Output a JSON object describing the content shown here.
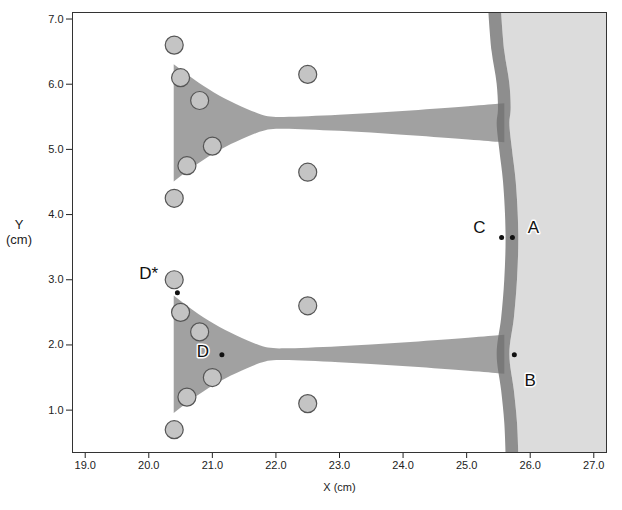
{
  "chart_data": {
    "type": "field",
    "x_label": "X (cm)",
    "y_label": "Y (cm)",
    "xlim": [
      18.8,
      27.2
    ],
    "ylim": [
      0.35,
      7.1
    ],
    "xticks": [
      {
        "value": 19,
        "label": "19.0"
      },
      {
        "value": 20,
        "label": "20.0"
      },
      {
        "value": 21,
        "label": "21.0"
      },
      {
        "value": 22,
        "label": "22.0"
      },
      {
        "value": 23,
        "label": "23.0"
      },
      {
        "value": 24,
        "label": "24.0"
      },
      {
        "value": 25,
        "label": "25.0"
      },
      {
        "value": 26,
        "label": "26.0"
      },
      {
        "value": 27,
        "label": "27.0"
      }
    ],
    "yticks": [
      {
        "value": 1,
        "label": "1.0"
      },
      {
        "value": 2,
        "label": "2.0"
      },
      {
        "value": 3,
        "label": "3.0"
      },
      {
        "value": 4,
        "label": "4.0"
      },
      {
        "value": 5,
        "label": "5.0"
      },
      {
        "value": 6,
        "label": "6.0"
      },
      {
        "value": 7,
        "label": "7.0"
      }
    ],
    "grid": false,
    "shock_front": {
      "y": [
        7.1,
        6.5,
        6.0,
        5.6,
        5.4,
        5.0,
        4.5,
        3.7,
        3.0,
        2.4,
        1.85,
        1.3,
        0.8,
        0.35
      ],
      "x": [
        25.55,
        25.6,
        25.68,
        25.7,
        25.68,
        25.72,
        25.78,
        25.82,
        25.8,
        25.75,
        25.68,
        25.75,
        25.8,
        25.82
      ]
    },
    "shock_back": {
      "y": [
        7.1,
        6.5,
        6.0,
        5.6,
        5.4,
        5.0,
        4.5,
        3.7,
        3.0,
        2.4,
        1.85,
        1.3,
        0.8,
        0.35
      ],
      "x": [
        25.35,
        25.4,
        25.48,
        25.5,
        25.48,
        25.52,
        25.58,
        25.62,
        25.6,
        25.55,
        25.48,
        25.55,
        25.6,
        25.62
      ]
    },
    "jets": [
      {
        "y": 1.85,
        "x": [
          20.4,
          21.0,
          21.8,
          22.0,
          23.0,
          24.0,
          25.0,
          25.6
        ],
        "half_width": [
          0.9,
          0.45,
          0.1,
          0.08,
          0.12,
          0.18,
          0.25,
          0.3
        ]
      },
      {
        "y": 5.4,
        "x": [
          20.4,
          21.0,
          21.8,
          22.0,
          23.0,
          24.0,
          25.0,
          25.6
        ],
        "half_width": [
          0.9,
          0.45,
          0.1,
          0.08,
          0.12,
          0.18,
          0.25,
          0.3
        ]
      }
    ],
    "vortices": {
      "x": [
        20.4,
        20.5,
        20.8,
        20.4,
        20.6,
        21.0,
        22.5,
        22.5,
        20.4,
        20.5,
        20.8,
        20.4,
        20.6,
        21.0,
        22.5,
        22.5
      ],
      "y": [
        3.0,
        2.5,
        2.2,
        0.7,
        1.2,
        1.5,
        2.6,
        1.1,
        6.6,
        6.1,
        5.75,
        4.25,
        4.75,
        5.05,
        6.15,
        4.65
      ]
    },
    "annotations": [
      {
        "text": "A",
        "x": 26.05,
        "y": 3.8,
        "point_x": 25.72,
        "point_y": 3.65
      },
      {
        "text": "C",
        "x": 25.2,
        "y": 3.8,
        "point_x": 25.55,
        "point_y": 3.65
      },
      {
        "text": "B",
        "x": 26.0,
        "y": 1.45,
        "point_x": 25.75,
        "point_y": 1.85
      },
      {
        "text": "D",
        "x": 20.85,
        "y": 1.9,
        "point_x": 21.15,
        "point_y": 1.85
      },
      {
        "text": "D*",
        "x": 20.0,
        "y": 3.1,
        "point_x": 20.45,
        "point_y": 2.8
      }
    ]
  }
}
